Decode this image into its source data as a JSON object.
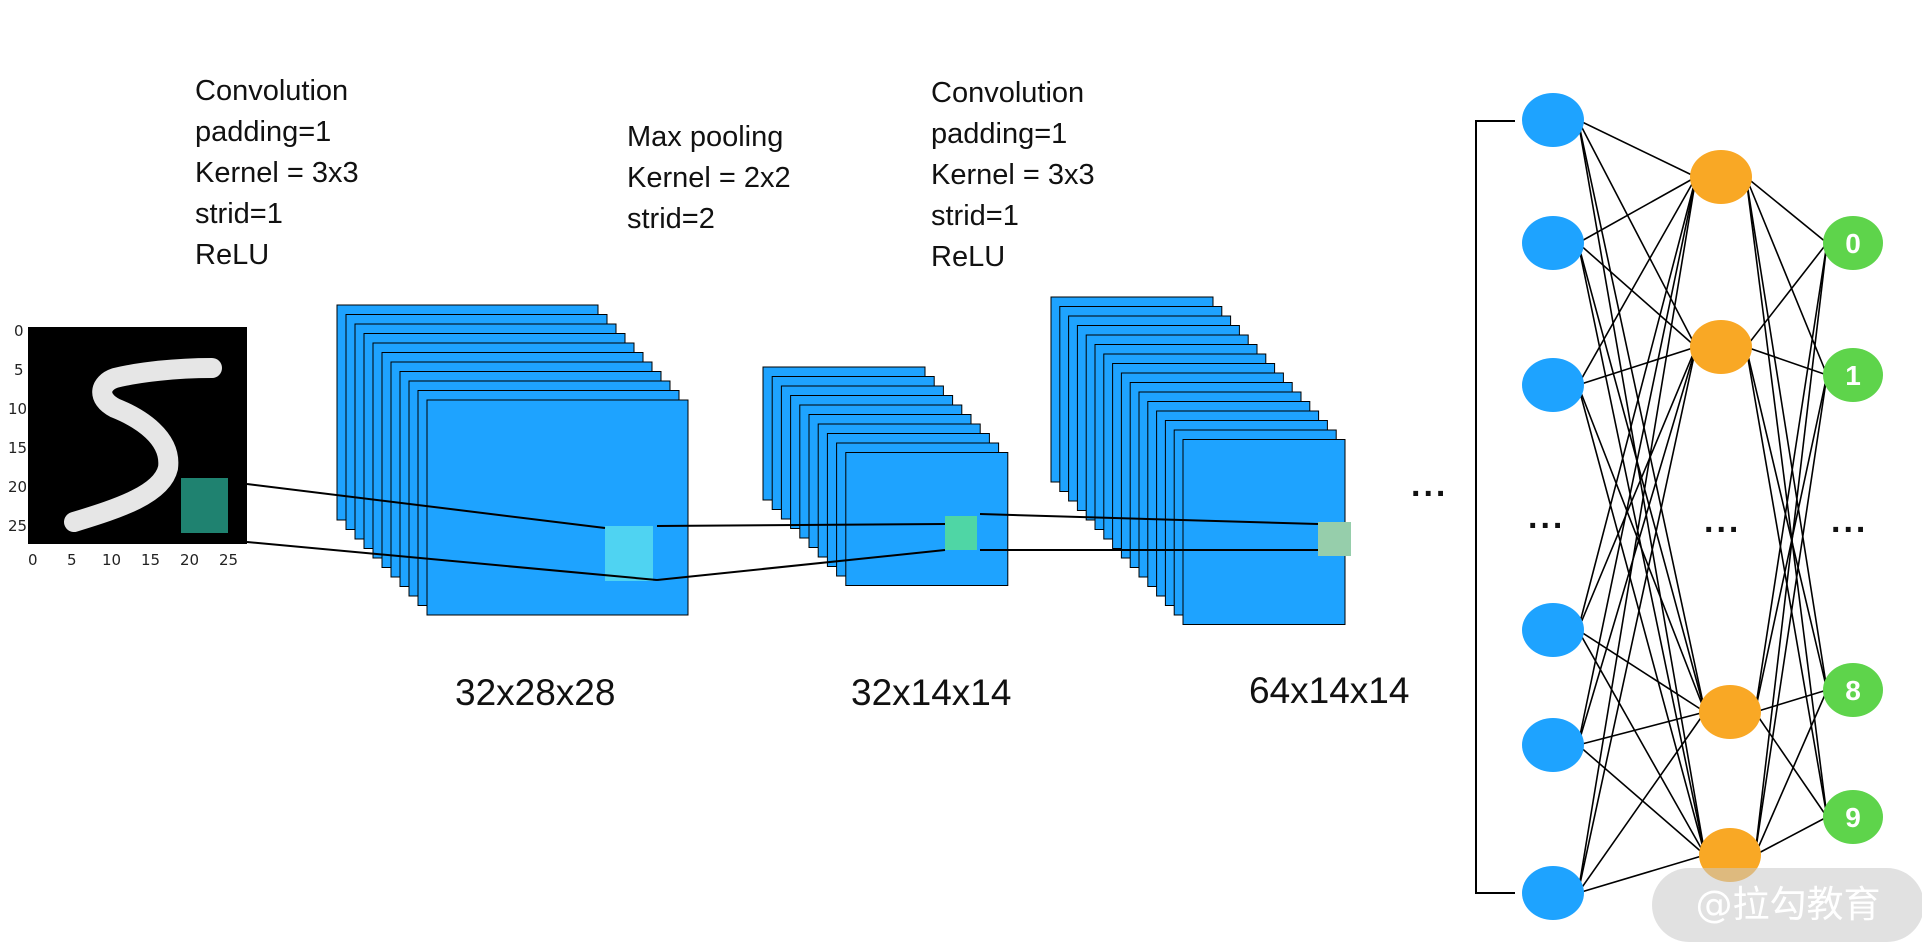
{
  "labels": {
    "conv1": [
      "Convolution",
      "padding=1",
      "Kernel = 3x3",
      "strid=1",
      "ReLU"
    ],
    "pool": [
      "Max pooling",
      "Kernel = 2x2",
      "strid=2"
    ],
    "conv2": [
      "Convolution",
      "padding=1",
      "Kernel = 3x3",
      "strid=1",
      "ReLU"
    ]
  },
  "dimensions": {
    "conv1": "32x28x28",
    "pool": "32x14x14",
    "conv2": "64x14x14"
  },
  "input_image": {
    "y_ticks": [
      "0",
      "5",
      "10",
      "15",
      "20",
      "25"
    ],
    "x_ticks": [
      "0",
      "5",
      "10",
      "15",
      "20",
      "25"
    ]
  },
  "ellipsis": "...",
  "output_labels": [
    "0",
    "1",
    "8",
    "9"
  ],
  "watermark": "@拉勾教育",
  "colors": {
    "feature_map": "#1ea3ff",
    "input_node": "#1ea3ff",
    "hidden_node": "#f9a825",
    "output_node": "#5ed44b",
    "highlight_input": "#1f8270",
    "highlight_conv1": "#4fd3f2",
    "highlight_pool": "#4fd6a5",
    "highlight_conv2": "#96ceab"
  }
}
